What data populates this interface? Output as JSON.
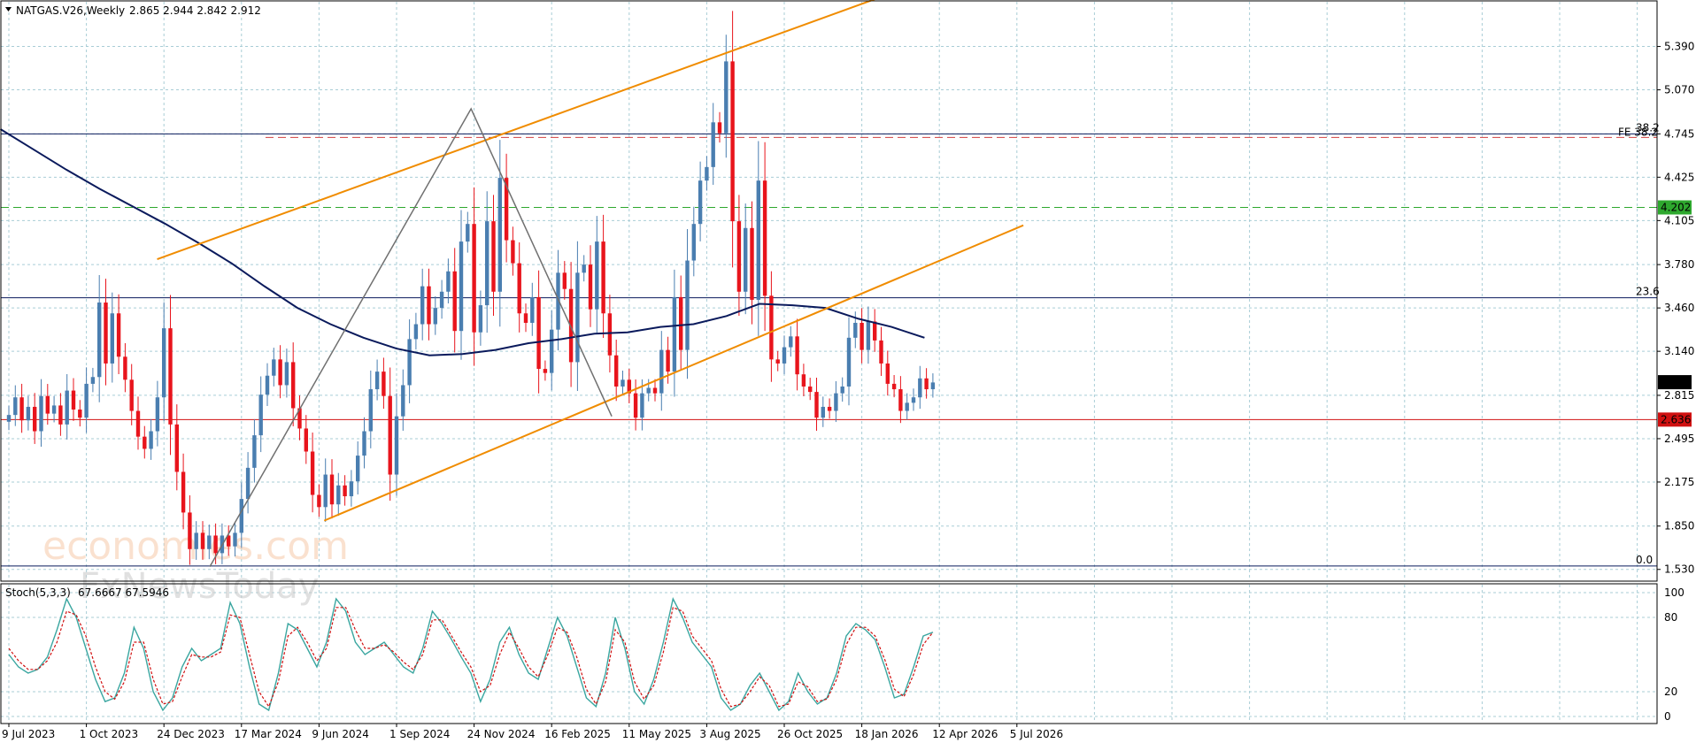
{
  "header": {
    "symbol": "NATGAS.V26,Weekly",
    "ohlc": "2.865 2.944 2.842 2.912"
  },
  "stoch_header": {
    "name": "Stoch(5,3,3)",
    "values": "67.6667 67.5946"
  },
  "watermark": {
    "line1": "economies.com",
    "line2": "FxNewsToday"
  },
  "colors": {
    "bull": "#4a7eb0",
    "bear": "#e8141c",
    "ma": "#0a1a5c",
    "channel": "#f08c00",
    "zigzag": "#707070",
    "fib": "#0a1a5c",
    "resistance_green": "#2ea82e",
    "support_red": "#d01010",
    "stoch_main": "#3aa6a0",
    "stoch_signal": "#d01010",
    "grid": "#a9cdd6"
  },
  "chart_data": {
    "type": "candlestick",
    "price_axis": {
      "ticks": [
        "5.390",
        "5.070",
        "4.745",
        "4.425",
        "4.105",
        "3.780",
        "3.460",
        "3.140",
        "2.815",
        "2.495",
        "2.175",
        "1.850",
        "1.530"
      ],
      "ylim": [
        1.45,
        5.72
      ]
    },
    "time_axis": {
      "labels": [
        "9 Jul 2023",
        "1 Oct 2023",
        "24 Dec 2023",
        "17 Mar 2024",
        "9 Jun 2024",
        "1 Sep 2024",
        "24 Nov 2024",
        "16 Feb 2025",
        "11 May 2025",
        "3 Aug 2025",
        "26 Oct 2025",
        "18 Jan 2026",
        "12 Apr 2026",
        "5 Jul 2026"
      ],
      "bars_between_labels": 12
    },
    "candles_close": [
      2.67,
      2.8,
      2.63,
      2.73,
      2.55,
      2.81,
      2.68,
      2.74,
      2.6,
      2.85,
      2.71,
      2.65,
      2.9,
      2.95,
      3.5,
      3.05,
      3.42,
      3.1,
      2.93,
      2.7,
      2.51,
      2.42,
      2.55,
      2.8,
      3.31,
      2.6,
      2.25,
      1.95,
      1.68,
      1.8,
      1.68,
      1.78,
      1.65,
      1.78,
      1.7,
      1.8,
      2.05,
      2.28,
      2.52,
      2.82,
      2.96,
      3.08,
      2.89,
      3.06,
      2.72,
      2.57,
      2.4,
      2.08,
      1.99,
      2.23,
      2.01,
      2.15,
      2.07,
      2.18,
      2.37,
      2.55,
      2.86,
      2.99,
      2.81,
      2.23,
      2.66,
      2.89,
      3.23,
      3.34,
      3.62,
      3.34,
      3.46,
      3.58,
      3.73,
      3.29,
      3.95,
      4.08,
      3.28,
      3.48,
      4.1,
      3.58,
      4.42,
      3.96,
      3.79,
      3.42,
      3.35,
      3.54,
      3.01,
      2.98,
      3.3,
      3.72,
      3.6,
      3.06,
      3.72,
      3.78,
      3.45,
      3.95,
      3.42,
      3.11,
      2.88,
      2.93,
      2.83,
      2.65,
      2.83,
      2.87,
      2.83,
      3.15,
      2.99,
      3.54,
      3.15,
      3.81,
      4.08,
      4.4,
      4.5,
      4.83,
      4.75,
      5.28,
      4.1,
      3.58,
      4.05,
      3.52,
      4.4,
      3.55,
      3.08,
      3.05,
      3.17,
      3.25,
      2.97,
      2.88,
      2.84,
      2.65,
      2.73,
      2.7,
      2.83,
      2.88,
      3.24,
      3.35,
      3.15,
      3.36,
      3.22,
      3.05,
      2.9,
      2.86,
      2.7,
      2.76,
      2.8,
      2.94,
      2.86,
      2.91
    ],
    "ma": {
      "name": "",
      "values": [
        4.78,
        4.63,
        4.48,
        4.34,
        4.21,
        4.08,
        3.94,
        3.79,
        3.62,
        3.46,
        3.34,
        3.24,
        3.16,
        3.11,
        3.12,
        3.15,
        3.2,
        3.23,
        3.27,
        3.28,
        3.32,
        3.34,
        3.4,
        3.49,
        3.48,
        3.46,
        3.38,
        3.32,
        3.24
      ]
    },
    "channel_upper": {
      "x_bar": [
        9,
        48
      ],
      "y": [
        3.82,
        5.75
      ]
    },
    "channel_lower": {
      "x_bar": [
        1,
        95
      ],
      "y": [
        1.89,
        3.52
      ]
    },
    "fib": [
      {
        "label": "38.2",
        "price": 4.745,
        "secondary_label": "FE 38.2"
      },
      {
        "label": "23.6",
        "price": 3.535
      },
      {
        "label": "0.0",
        "price": 1.555
      }
    ],
    "levels": [
      {
        "label": "4.202",
        "price": 4.202,
        "kind": "resistance"
      },
      {
        "label": "2.636",
        "price": 2.636,
        "kind": "support"
      },
      {
        "label": "2.912",
        "price": 2.912,
        "kind": "current"
      }
    ],
    "zigzag": [
      [
        10,
        1.55
      ],
      [
        23,
        4.93
      ],
      [
        30,
        2.66
      ]
    ],
    "stochastic": {
      "ticks": [
        "100",
        "80",
        "20",
        "0"
      ],
      "ylim": [
        0,
        100
      ],
      "main": [
        50,
        40,
        35,
        38,
        48,
        70,
        95,
        80,
        55,
        30,
        12,
        15,
        35,
        72,
        55,
        20,
        5,
        15,
        40,
        55,
        45,
        50,
        55,
        92,
        75,
        40,
        10,
        5,
        35,
        75,
        70,
        55,
        40,
        60,
        95,
        85,
        60,
        50,
        55,
        60,
        50,
        40,
        35,
        55,
        85,
        75,
        62,
        48,
        35,
        12,
        30,
        60,
        72,
        50,
        35,
        30,
        55,
        80,
        65,
        40,
        15,
        8,
        35,
        80,
        55,
        20,
        10,
        30,
        60,
        95,
        80,
        60,
        50,
        40,
        15,
        5,
        10,
        25,
        35,
        20,
        5,
        12,
        35,
        20,
        10,
        15,
        35,
        65,
        75,
        70,
        62,
        40,
        15,
        18,
        40,
        65,
        68
      ],
      "signal": [
        55,
        45,
        38,
        38,
        45,
        60,
        85,
        82,
        65,
        40,
        20,
        14,
        28,
        60,
        60,
        30,
        10,
        12,
        32,
        50,
        48,
        48,
        52,
        82,
        80,
        50,
        20,
        8,
        28,
        65,
        72,
        60,
        45,
        55,
        88,
        88,
        70,
        55,
        55,
        58,
        52,
        44,
        38,
        50,
        78,
        78,
        65,
        52,
        40,
        20,
        25,
        50,
        68,
        55,
        40,
        32,
        50,
        72,
        68,
        48,
        22,
        10,
        28,
        70,
        60,
        28,
        14,
        25,
        52,
        88,
        85,
        65,
        55,
        45,
        22,
        8,
        10,
        20,
        32,
        25,
        8,
        10,
        28,
        24,
        12,
        14,
        30,
        58,
        72,
        72,
        65,
        46,
        22,
        16,
        34,
        58,
        68
      ]
    }
  }
}
